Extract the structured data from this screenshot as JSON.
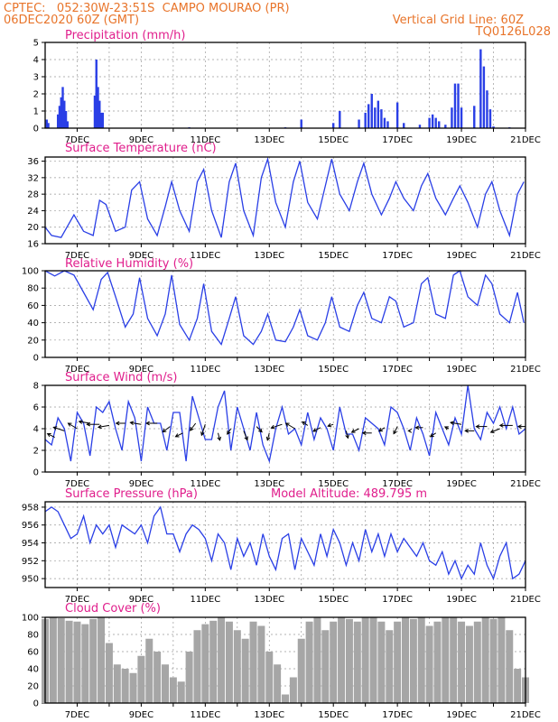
{
  "header": {
    "source_line": "CPTEC:   052:30W-23:51S  CAMPO MOURAO (PR)",
    "run_line": "06DEC2020 60Z (GMT)",
    "grid_line": "Vertical Grid Line: 60Z",
    "run_id": "TQ0126L028"
  },
  "colors": {
    "header": "#e8742a",
    "panel_title": "#e01e8c",
    "series": "#2a3fe6",
    "cloud": "#a6a6a6",
    "arrows": "#000000"
  },
  "model_altitude": "Model Altitude: 489.795 m",
  "x_ticks": [
    "7DEC",
    "9DEC",
    "11DEC",
    "13DEC",
    "15DEC",
    "17DEC",
    "19DEC",
    "21DEC"
  ],
  "chart_data": [
    {
      "id": "precip",
      "type": "bar",
      "title": "Precipitation (mm/h)",
      "ylim": [
        0,
        5
      ],
      "yticks": [
        "0",
        "1",
        "2",
        "3",
        "4",
        "5"
      ],
      "x": [
        6.05,
        6.1,
        6.4,
        6.45,
        6.5,
        6.55,
        6.6,
        6.65,
        6.7,
        7.55,
        7.6,
        7.65,
        7.7,
        7.75,
        7.8,
        10.5,
        13.5,
        14.0,
        15.0,
        15.2,
        15.8,
        16.0,
        16.1,
        16.2,
        16.3,
        16.4,
        16.5,
        16.6,
        16.7,
        17.0,
        17.2,
        17.7,
        18.0,
        18.1,
        18.2,
        18.3,
        18.5,
        18.7,
        18.8,
        18.9,
        19.0,
        19.4,
        19.6,
        19.7,
        19.8,
        19.9,
        20.0,
        20.5
      ],
      "values": [
        0.5,
        0.3,
        0.8,
        1.3,
        1.8,
        2.4,
        1.6,
        1.0,
        0.4,
        1.9,
        4.0,
        2.4,
        1.6,
        0.9,
        0.9,
        0.05,
        0.05,
        0.5,
        0.3,
        1.0,
        0.5,
        0.9,
        1.4,
        2.0,
        1.2,
        1.6,
        1.1,
        0.6,
        0.4,
        1.5,
        0.3,
        0.2,
        0.6,
        0.8,
        0.6,
        0.4,
        0.2,
        1.2,
        2.6,
        2.6,
        1.2,
        1.3,
        4.6,
        3.6,
        2.2,
        1.1,
        0.1,
        0.05
      ]
    },
    {
      "id": "temp",
      "type": "line",
      "title": "Surface Temperature (nC)",
      "ylim": [
        16,
        37
      ],
      "yticks": [
        "16",
        "20",
        "24",
        "28",
        "32",
        "36"
      ],
      "x": [
        6,
        6.2,
        6.5,
        6.9,
        7.2,
        7.5,
        7.7,
        7.9,
        8.2,
        8.5,
        8.7,
        8.95,
        9.2,
        9.5,
        9.75,
        9.95,
        10.2,
        10.5,
        10.75,
        10.95,
        11.2,
        11.5,
        11.75,
        11.95,
        12.2,
        12.5,
        12.75,
        12.95,
        13.2,
        13.5,
        13.75,
        13.95,
        14.2,
        14.5,
        14.75,
        14.95,
        15.2,
        15.5,
        15.75,
        15.95,
        16.2,
        16.5,
        16.75,
        16.95,
        17.2,
        17.5,
        17.75,
        17.95,
        18.2,
        18.5,
        18.75,
        18.95,
        19.2,
        19.5,
        19.75,
        19.95,
        20.2,
        20.5,
        20.75,
        20.95
      ],
      "values": [
        20,
        18,
        17.5,
        23,
        19,
        18,
        26.5,
        25.5,
        19,
        20,
        29,
        31,
        22,
        18,
        25,
        31,
        24,
        19,
        31,
        34,
        24,
        17.5,
        31,
        35.5,
        24,
        18,
        32,
        36.5,
        26,
        20,
        31,
        36,
        26,
        22,
        30,
        36.5,
        28,
        24,
        31,
        35.5,
        28,
        23,
        27,
        31,
        27,
        24,
        30,
        33,
        27,
        23,
        27,
        30,
        26,
        20,
        28,
        31,
        24,
        18,
        28,
        31
      ]
    },
    {
      "id": "rh",
      "type": "line",
      "title": "Relative Humidity (%)",
      "ylim": [
        0,
        100
      ],
      "yticks": [
        "0",
        "20",
        "40",
        "60",
        "80",
        "100"
      ],
      "x": [
        6,
        6.3,
        6.6,
        6.9,
        7.2,
        7.5,
        7.75,
        7.95,
        8.2,
        8.5,
        8.75,
        8.95,
        9.2,
        9.5,
        9.75,
        9.95,
        10.2,
        10.5,
        10.75,
        10.95,
        11.2,
        11.5,
        11.75,
        11.95,
        12.2,
        12.5,
        12.75,
        12.95,
        13.2,
        13.5,
        13.75,
        13.95,
        14.2,
        14.5,
        14.75,
        14.95,
        15.2,
        15.5,
        15.75,
        15.95,
        16.2,
        16.5,
        16.75,
        16.95,
        17.2,
        17.5,
        17.75,
        17.95,
        18.2,
        18.5,
        18.75,
        18.95,
        19.2,
        19.5,
        19.75,
        19.95,
        20.2,
        20.5,
        20.75,
        20.95
      ],
      "values": [
        100,
        94,
        100,
        95,
        75,
        55,
        90,
        98,
        70,
        35,
        50,
        92,
        45,
        25,
        50,
        95,
        38,
        20,
        45,
        85,
        30,
        15,
        45,
        70,
        25,
        15,
        30,
        50,
        20,
        18,
        35,
        55,
        25,
        20,
        40,
        70,
        35,
        30,
        60,
        75,
        45,
        40,
        70,
        65,
        35,
        40,
        85,
        92,
        50,
        45,
        95,
        100,
        70,
        60,
        95,
        85,
        50,
        40,
        75,
        40
      ]
    },
    {
      "id": "wind",
      "type": "line",
      "title": "Surface Wind (m/s)",
      "ylim": [
        0,
        8
      ],
      "yticks": [
        "0",
        "2",
        "4",
        "6",
        "8"
      ],
      "x": [
        6,
        6.2,
        6.4,
        6.6,
        6.8,
        7.0,
        7.2,
        7.4,
        7.6,
        7.8,
        8.0,
        8.2,
        8.4,
        8.6,
        8.8,
        9.0,
        9.2,
        9.4,
        9.6,
        9.8,
        10.0,
        10.2,
        10.4,
        10.6,
        10.8,
        11.0,
        11.2,
        11.4,
        11.6,
        11.8,
        12.0,
        12.2,
        12.4,
        12.6,
        12.8,
        13.0,
        13.2,
        13.4,
        13.6,
        13.8,
        14.0,
        14.2,
        14.4,
        14.6,
        14.8,
        15.0,
        15.2,
        15.4,
        15.6,
        15.8,
        16.0,
        16.2,
        16.4,
        16.6,
        16.8,
        17.0,
        17.2,
        17.4,
        17.6,
        17.8,
        18.0,
        18.2,
        18.4,
        18.6,
        18.8,
        19.0,
        19.2,
        19.4,
        19.6,
        19.8,
        20.0,
        20.2,
        20.4,
        20.6,
        20.8,
        21.0
      ],
      "values": [
        3,
        2.5,
        5,
        4,
        1,
        5.5,
        4.5,
        1.5,
        6,
        5.5,
        6.5,
        4,
        2,
        6.5,
        5,
        1,
        6,
        4.5,
        4.5,
        2,
        5.5,
        5.5,
        1,
        7,
        5,
        3,
        3,
        6,
        7.5,
        2,
        6,
        4,
        2,
        5.5,
        2.5,
        1,
        4,
        6,
        3.5,
        4,
        2.5,
        5.5,
        3,
        5,
        4,
        2,
        6,
        3.5,
        3.5,
        2,
        5,
        4.5,
        4,
        2.5,
        6,
        5.5,
        4,
        2,
        5,
        3.5,
        1.5,
        5.5,
        4,
        2.5,
        5,
        3.5,
        8,
        4,
        3,
        5.5,
        4.5,
        6,
        4,
        6,
        3.5,
        4
      ]
    },
    {
      "id": "pressure",
      "type": "line",
      "title": "Surface Pressure (hPa)",
      "ylim": [
        949,
        958.6
      ],
      "yticks": [
        "950",
        "952",
        "954",
        "956",
        "958"
      ],
      "x": [
        6,
        6.2,
        6.4,
        6.6,
        6.8,
        7.0,
        7.2,
        7.4,
        7.6,
        7.8,
        8.0,
        8.2,
        8.4,
        8.6,
        8.8,
        9.0,
        9.2,
        9.4,
        9.6,
        9.8,
        10.0,
        10.2,
        10.4,
        10.6,
        10.8,
        11.0,
        11.2,
        11.4,
        11.6,
        11.8,
        12.0,
        12.2,
        12.4,
        12.6,
        12.8,
        13.0,
        13.2,
        13.4,
        13.6,
        13.8,
        14.0,
        14.2,
        14.4,
        14.6,
        14.8,
        15.0,
        15.2,
        15.4,
        15.6,
        15.8,
        16.0,
        16.2,
        16.4,
        16.6,
        16.8,
        17.0,
        17.2,
        17.4,
        17.6,
        17.8,
        18.0,
        18.2,
        18.4,
        18.6,
        18.8,
        19.0,
        19.2,
        19.4,
        19.6,
        19.8,
        20.0,
        20.2,
        20.4,
        20.6,
        20.8,
        21.0
      ],
      "values": [
        957.5,
        958,
        957.5,
        956,
        954.5,
        955,
        957,
        954,
        956,
        955,
        956,
        953.5,
        956,
        955.5,
        955,
        956,
        954,
        957,
        958,
        955,
        955,
        953,
        955,
        956,
        955.5,
        954.5,
        952,
        955,
        954,
        951,
        954.5,
        952.5,
        954,
        951.5,
        955,
        952.5,
        951,
        954.5,
        955,
        951,
        954.5,
        953,
        951.5,
        955,
        952.5,
        955.5,
        954,
        951.5,
        954,
        952,
        955.5,
        953,
        955,
        952.5,
        955,
        953,
        954.5,
        953.5,
        952.5,
        954,
        952,
        951.5,
        953,
        950.5,
        952,
        950,
        951.5,
        950.5,
        954,
        951.5,
        950,
        952.5,
        954,
        950,
        950.5,
        952
      ]
    },
    {
      "id": "cloud",
      "type": "bar",
      "title": "Cloud Cover (%)",
      "ylim": [
        0,
        100
      ],
      "yticks": [
        "0",
        "20",
        "40",
        "60",
        "80",
        "100"
      ],
      "x": [
        6,
        6.25,
        6.5,
        6.75,
        7,
        7.25,
        7.5,
        7.75,
        8,
        8.25,
        8.5,
        8.75,
        9,
        9.25,
        9.5,
        9.75,
        10,
        10.25,
        10.5,
        10.75,
        11,
        11.25,
        11.5,
        11.75,
        12,
        12.25,
        12.5,
        12.75,
        13,
        13.25,
        13.5,
        13.75,
        14,
        14.25,
        14.5,
        14.75,
        15,
        15.25,
        15.5,
        15.75,
        16,
        16.25,
        16.5,
        16.75,
        17,
        17.25,
        17.5,
        17.75,
        18,
        18.25,
        18.5,
        18.75,
        19,
        19.25,
        19.5,
        19.75,
        20,
        20.25,
        20.5,
        20.75,
        21
      ],
      "values": [
        98,
        100,
        99,
        96,
        95,
        92,
        98,
        100,
        70,
        45,
        40,
        35,
        55,
        75,
        60,
        45,
        30,
        25,
        60,
        85,
        92,
        96,
        100,
        95,
        85,
        75,
        95,
        90,
        60,
        45,
        10,
        30,
        75,
        95,
        100,
        85,
        95,
        100,
        98,
        95,
        100,
        100,
        95,
        85,
        95,
        100,
        98,
        100,
        90,
        95,
        100,
        100,
        95,
        90,
        95,
        100,
        98,
        100,
        85,
        40,
        30
      ]
    }
  ],
  "wind_arrows": {
    "x": [
      6.3,
      6.6,
      7.0,
      7.4,
      7.7,
      8.0,
      8.5,
      9.0,
      9.5,
      9.9,
      10.3,
      10.7,
      11.0,
      11.4,
      11.8,
      12.2,
      12.6,
      13.0,
      13.4,
      13.8,
      14.2,
      14.6,
      15.0,
      15.4,
      15.8,
      16.2,
      16.6,
      17.0,
      17.4,
      17.8,
      18.2,
      18.6,
      19.0,
      19.4,
      19.8,
      20.2,
      20.6,
      21.0
    ],
    "y": [
      3.2,
      3.8,
      4.0,
      4.5,
      4.4,
      4.3,
      4.5,
      4.4,
      4.5,
      4.2,
      3.6,
      4.5,
      4.4,
      3.6,
      4.0,
      3.8,
      4.2,
      3.6,
      4.4,
      4.0,
      4.3,
      4.1,
      4.4,
      3.8,
      4.0,
      3.6,
      4.1,
      4.2,
      3.8,
      4.1,
      3.6,
      4.0,
      4.4,
      3.8,
      4.2,
      4.0,
      4.3,
      4.2
    ],
    "u": [
      -2,
      -3,
      -2.5,
      -3,
      -3.5,
      -3,
      -2.5,
      -3,
      -3,
      -2,
      -2,
      -1.5,
      -1,
      0.5,
      -1,
      1,
      1.5,
      -0.5,
      -3,
      -2.5,
      -1.5,
      -2,
      -1.5,
      0.5,
      -2,
      -2.5,
      -1.5,
      -1,
      -0.5,
      -2,
      -1.5,
      -1,
      -3,
      -2.5,
      -3,
      -2.5,
      -3.5,
      -2
    ],
    "v": [
      1,
      1,
      1.5,
      0.5,
      0,
      -0.5,
      0,
      0.5,
      0,
      -1.5,
      -1,
      -2,
      -3,
      -2,
      -1.5,
      -2.5,
      -1.5,
      -2,
      -1,
      1.5,
      1,
      -1,
      -0.5,
      -2,
      -1,
      0,
      -1,
      -2,
      0,
      0,
      -1,
      0.5,
      0.5,
      0,
      0,
      -1,
      0,
      0
    ]
  }
}
